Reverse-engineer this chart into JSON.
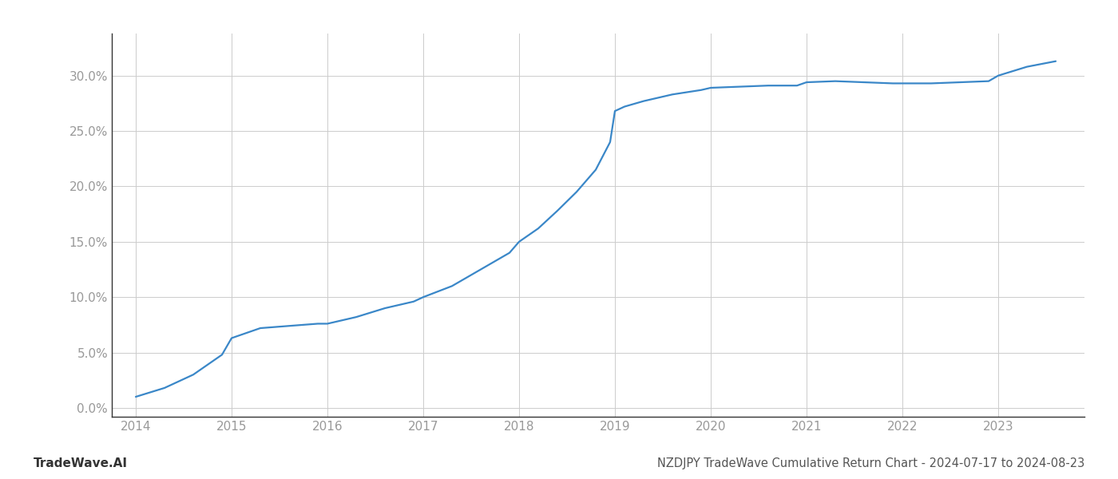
{
  "x": [
    2014.0,
    2014.3,
    2014.6,
    2014.9,
    2015.0,
    2015.3,
    2015.6,
    2015.9,
    2016.0,
    2016.3,
    2016.6,
    2016.9,
    2017.0,
    2017.3,
    2017.6,
    2017.9,
    2018.0,
    2018.2,
    2018.4,
    2018.6,
    2018.8,
    2018.95,
    2019.0,
    2019.1,
    2019.3,
    2019.6,
    2019.9,
    2020.0,
    2020.3,
    2020.6,
    2020.9,
    2021.0,
    2021.3,
    2021.6,
    2021.9,
    2022.0,
    2022.3,
    2022.6,
    2022.9,
    2023.0,
    2023.3,
    2023.6
  ],
  "y": [
    0.01,
    0.018,
    0.03,
    0.048,
    0.063,
    0.072,
    0.074,
    0.076,
    0.076,
    0.082,
    0.09,
    0.096,
    0.1,
    0.11,
    0.125,
    0.14,
    0.15,
    0.162,
    0.178,
    0.195,
    0.215,
    0.24,
    0.268,
    0.272,
    0.277,
    0.283,
    0.287,
    0.289,
    0.29,
    0.291,
    0.291,
    0.294,
    0.295,
    0.294,
    0.293,
    0.293,
    0.293,
    0.294,
    0.295,
    0.3,
    0.308,
    0.313
  ],
  "line_color": "#3a87c8",
  "line_width": 1.6,
  "title": "NZDJPY TradeWave Cumulative Return Chart - 2024-07-17 to 2024-08-23",
  "watermark": "TradeWave.AI",
  "background_color": "#ffffff",
  "grid_color": "#cccccc",
  "ytick_labels": [
    "0.0%",
    "5.0%",
    "10.0%",
    "15.0%",
    "20.0%",
    "25.0%",
    "30.0%"
  ],
  "ytick_values": [
    0.0,
    0.05,
    0.1,
    0.15,
    0.2,
    0.25,
    0.3
  ],
  "xtick_labels": [
    "2014",
    "2015",
    "2016",
    "2017",
    "2018",
    "2019",
    "2020",
    "2021",
    "2022",
    "2023"
  ],
  "xtick_values": [
    2014,
    2015,
    2016,
    2017,
    2018,
    2019,
    2020,
    2021,
    2022,
    2023
  ],
  "xlim": [
    2013.75,
    2023.9
  ],
  "ylim": [
    -0.008,
    0.338
  ],
  "title_fontsize": 10.5,
  "watermark_fontsize": 11,
  "tick_label_color": "#999999",
  "title_color": "#555555",
  "watermark_color": "#333333"
}
